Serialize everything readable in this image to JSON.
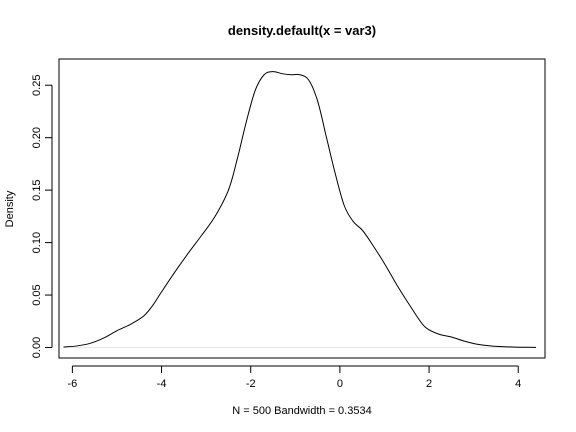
{
  "chart_data": {
    "type": "line",
    "title": "density.default(x = var3)",
    "xlabel": "N = 500   Bandwidth = 0.3534",
    "ylabel": "Density",
    "xlim": [
      -6.3,
      4.6
    ],
    "ylim": [
      -0.01,
      0.275
    ],
    "xticks": [
      -6,
      -4,
      -2,
      0,
      2,
      4
    ],
    "xtick_labels": [
      "-6",
      "-4",
      "-2",
      "0",
      "2",
      "4"
    ],
    "yticks": [
      0.0,
      0.05,
      0.1,
      0.15,
      0.2,
      0.25
    ],
    "ytick_labels": [
      "0.00",
      "0.05",
      "0.10",
      "0.15",
      "0.20",
      "0.25"
    ],
    "grid": false,
    "series": [
      {
        "x": [
          -6.2,
          -5.9,
          -5.6,
          -5.3,
          -5.0,
          -4.7,
          -4.4,
          -4.2,
          -4.0,
          -3.7,
          -3.4,
          -3.1,
          -2.8,
          -2.5,
          -2.3,
          -2.1,
          -1.9,
          -1.7,
          -1.5,
          -1.3,
          -1.1,
          -0.9,
          -0.7,
          -0.5,
          -0.3,
          -0.1,
          0.1,
          0.3,
          0.5,
          0.7,
          1.0,
          1.3,
          1.6,
          1.9,
          2.2,
          2.5,
          2.8,
          3.1,
          3.4,
          3.7,
          4.0,
          4.4
        ],
        "y": [
          0.0005,
          0.0015,
          0.004,
          0.009,
          0.016,
          0.022,
          0.03,
          0.04,
          0.053,
          0.072,
          0.09,
          0.107,
          0.125,
          0.15,
          0.18,
          0.215,
          0.245,
          0.26,
          0.263,
          0.261,
          0.26,
          0.26,
          0.255,
          0.235,
          0.2,
          0.165,
          0.135,
          0.12,
          0.112,
          0.1,
          0.08,
          0.058,
          0.038,
          0.02,
          0.013,
          0.01,
          0.006,
          0.003,
          0.0015,
          0.0007,
          0.0003,
          0.0001
        ]
      }
    ]
  }
}
